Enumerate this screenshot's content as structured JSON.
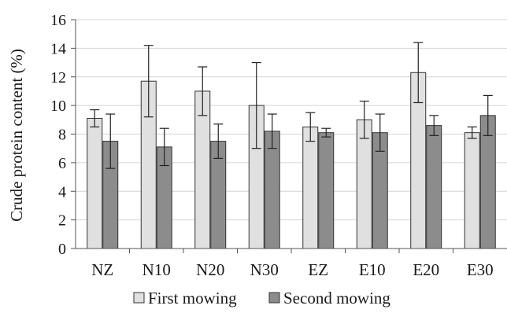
{
  "chart_data": {
    "type": "bar",
    "title": "",
    "xlabel": "",
    "ylabel": "Crude protein content (%)",
    "ylim": [
      0,
      16
    ],
    "yticks": [
      0,
      2,
      4,
      6,
      8,
      10,
      12,
      14,
      16
    ],
    "grid": "horizontal",
    "legend_position": "bottom",
    "categories": [
      "NZ",
      "N10",
      "N20",
      "N30",
      "EZ",
      "E10",
      "E20",
      "E30"
    ],
    "series": [
      {
        "name": "First mowing",
        "color": "#e0e0e0",
        "values": [
          9.1,
          11.7,
          11.0,
          10.0,
          8.5,
          9.0,
          12.3,
          8.1
        ],
        "errors": [
          0.6,
          2.5,
          1.7,
          3.0,
          1.0,
          1.3,
          2.1,
          0.4
        ]
      },
      {
        "name": "Second mowing",
        "color": "#8c8c8c",
        "values": [
          7.5,
          7.1,
          7.5,
          8.2,
          8.1,
          8.1,
          8.6,
          9.3
        ],
        "errors": [
          1.9,
          1.3,
          1.2,
          1.2,
          0.3,
          1.3,
          0.7,
          1.4
        ]
      }
    ]
  }
}
